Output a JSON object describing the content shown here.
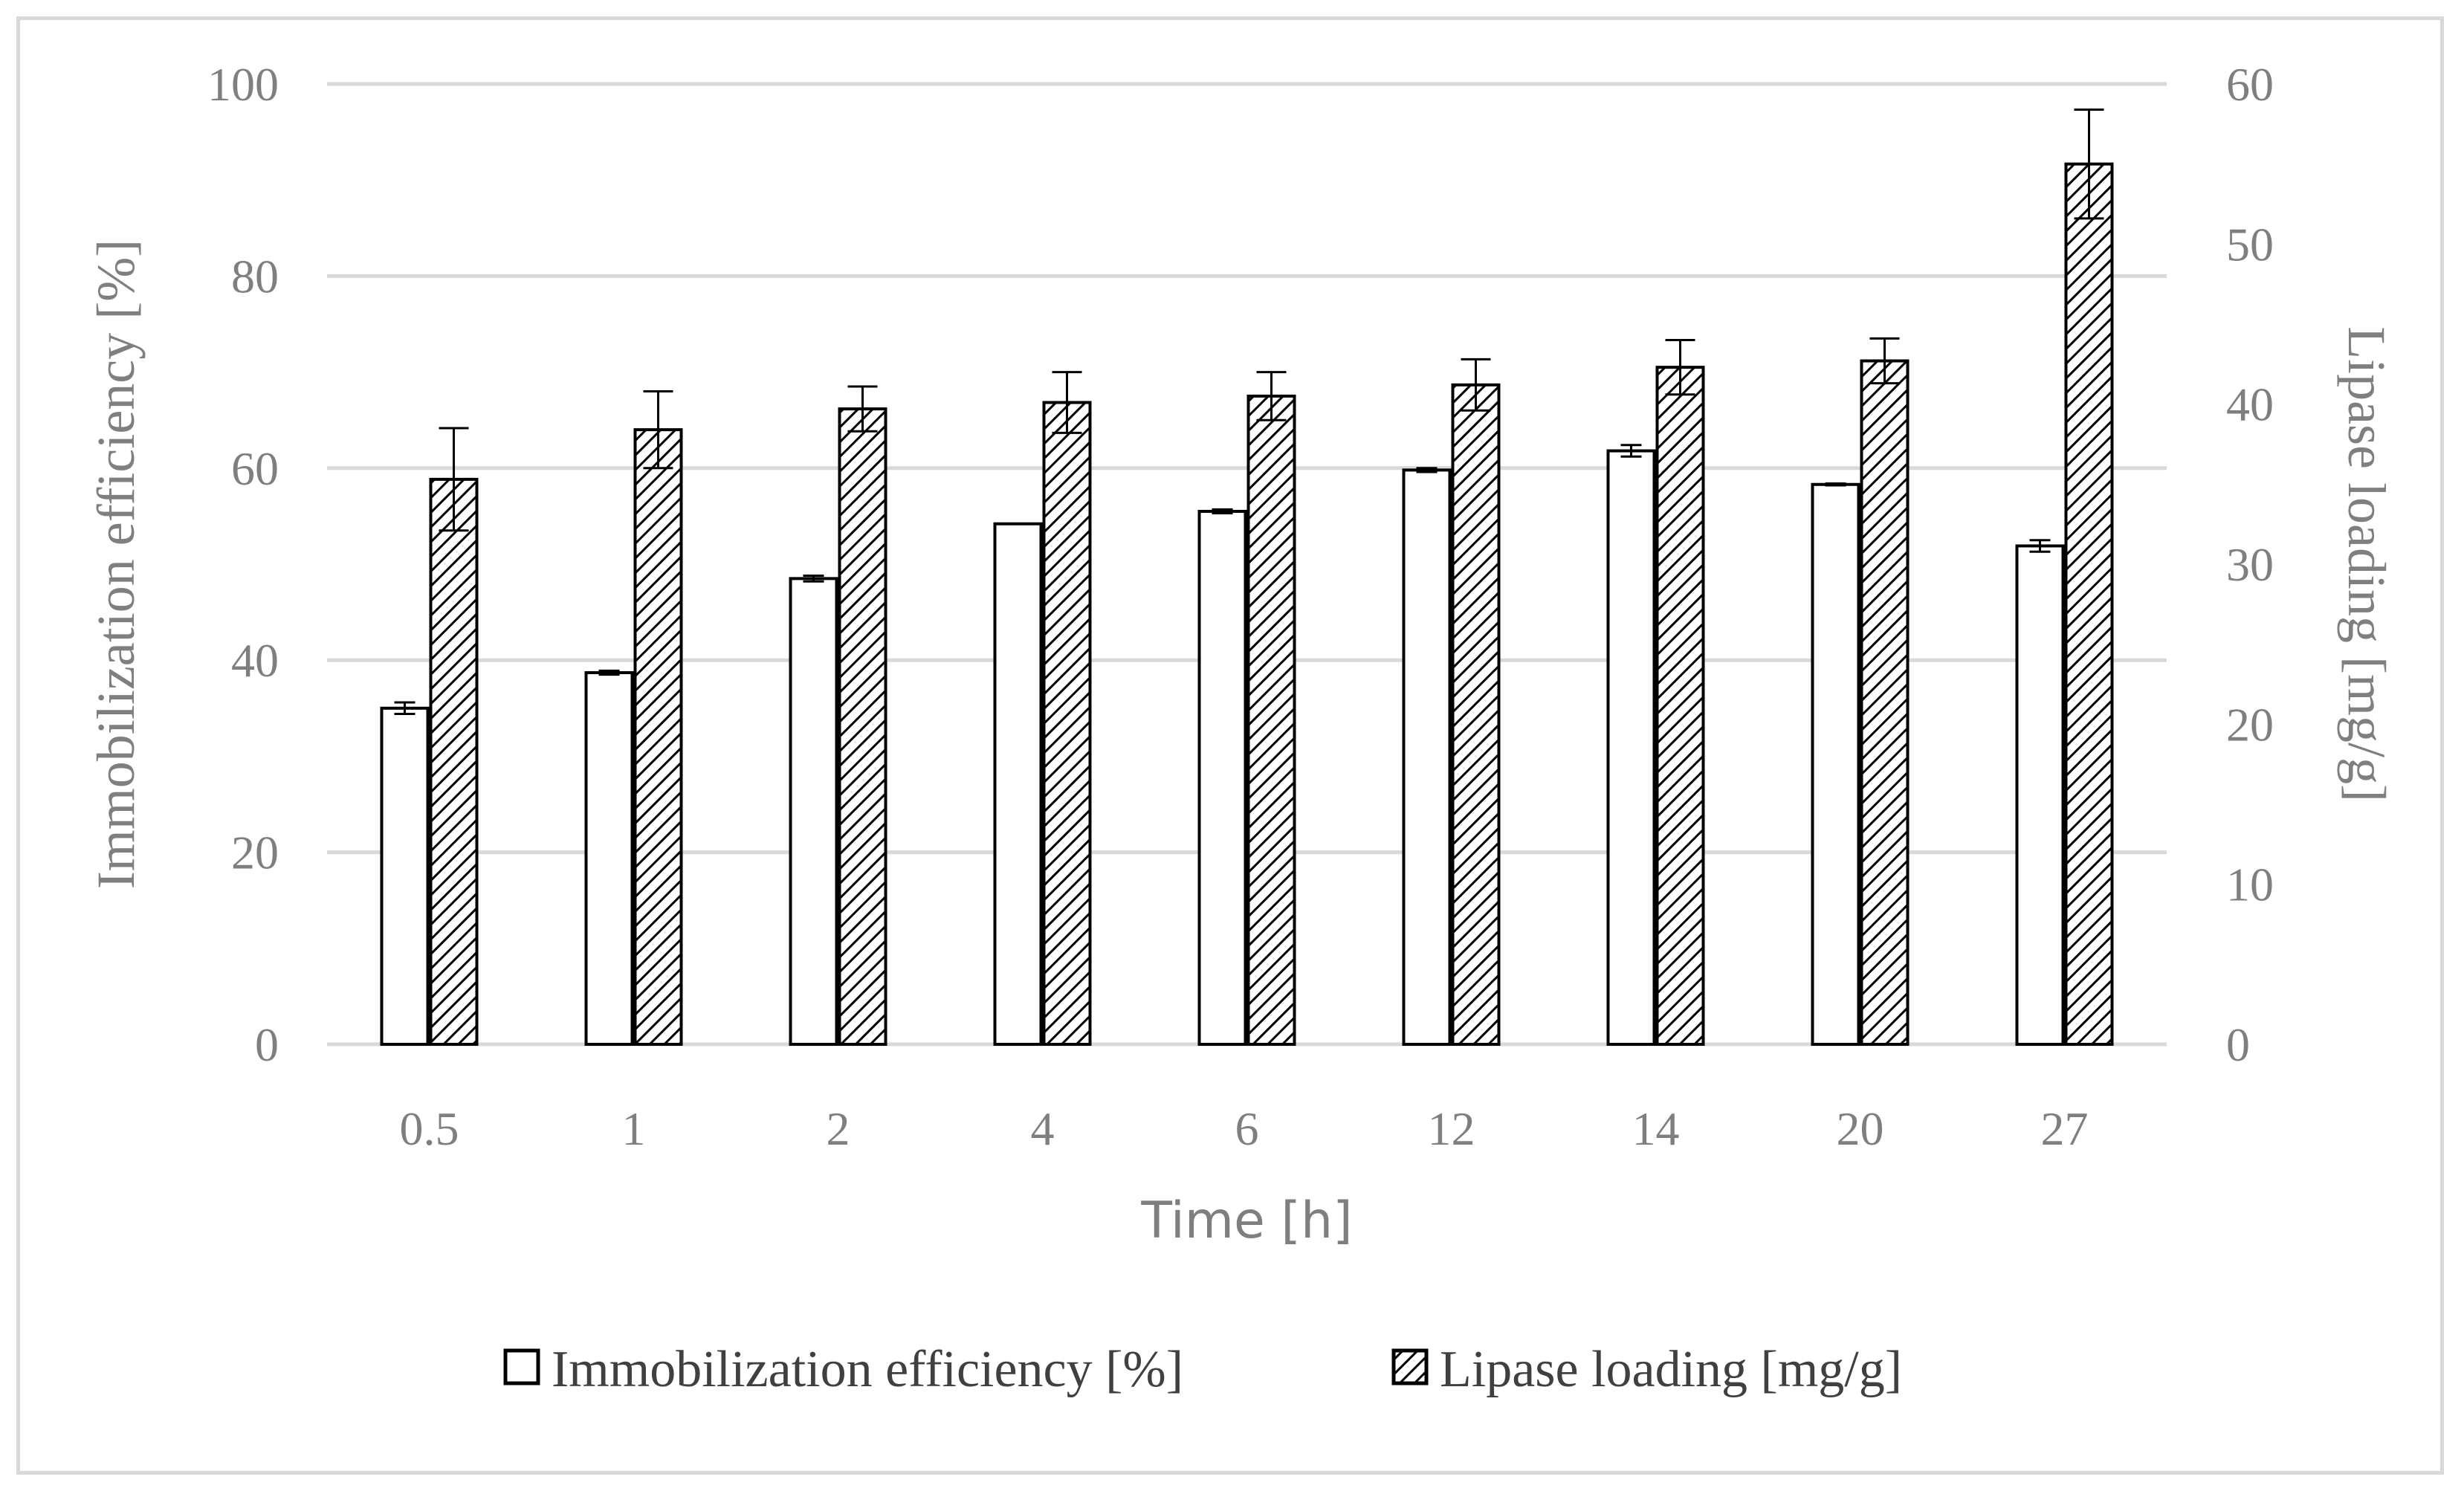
{
  "chart_data": {
    "type": "bar",
    "title": "",
    "xlabel": "Time [h]",
    "ylabel_left": "Immobilization efficiency [%]",
    "ylabel_right": "Lipase loading [mg/g]",
    "categories": [
      "0.5",
      "1",
      "2",
      "4",
      "6",
      "12",
      "14",
      "20",
      "27"
    ],
    "ylim_left": [
      0,
      100
    ],
    "yticks_left": [
      "0",
      "20",
      "40",
      "60",
      "80",
      "100"
    ],
    "ylim_right": [
      0,
      60
    ],
    "yticks_right": [
      "0",
      "10",
      "20",
      "30",
      "40",
      "50",
      "60"
    ],
    "grid": true,
    "legend_position": "bottom",
    "series": [
      {
        "name": "Immobilization efficiency [%]",
        "axis": "left",
        "pattern": "solid-white",
        "values": [
          35.0,
          38.7,
          48.5,
          54.2,
          55.5,
          59.8,
          61.8,
          58.3,
          51.9
        ],
        "errors": [
          0.6,
          0.2,
          0.3,
          0.0,
          0.2,
          0.2,
          0.6,
          0.1,
          0.6
        ]
      },
      {
        "name": "Lipase loading [mg/g]",
        "axis": "right",
        "pattern": "hatched",
        "values": [
          35.3,
          38.4,
          39.7,
          40.1,
          40.5,
          41.2,
          42.3,
          42.7,
          55.0
        ],
        "errors": [
          3.2,
          2.4,
          1.4,
          1.9,
          1.5,
          1.6,
          1.7,
          1.4,
          3.4
        ]
      }
    ]
  },
  "legend": {
    "items": [
      {
        "label": "Immobilization efficiency [%]",
        "pattern": "solid-white"
      },
      {
        "label": "Lipase loading [mg/g]",
        "pattern": "hatched"
      }
    ]
  },
  "colors": {
    "grid": "#d9d9d9",
    "axis_text": "#7f7f7f",
    "bar_stroke": "#000000",
    "bar_fill": "#ffffff",
    "legend_text": "#404040"
  }
}
